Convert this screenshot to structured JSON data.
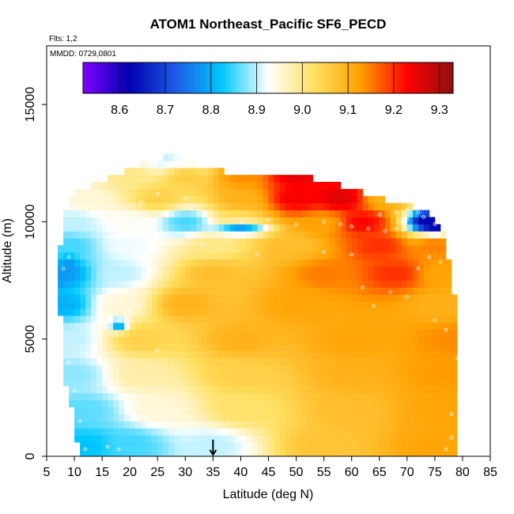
{
  "chart_data": {
    "type": "heatmap",
    "title": "ATOM1 Northeast_Pacific SF6_PECD",
    "subtitle_flights": "Flts: 1,2",
    "subtitle_dates": "MMDD: 0729,0801",
    "xlabel": "Latitude (deg N)",
    "ylabel": "Altitude (m)",
    "xlim": [
      5,
      85
    ],
    "ylim": [
      0,
      17500
    ],
    "x_ticks": [
      5,
      10,
      15,
      20,
      25,
      30,
      35,
      40,
      45,
      50,
      55,
      60,
      65,
      70,
      75,
      80,
      85
    ],
    "y_ticks": [
      0,
      5000,
      10000,
      15000
    ],
    "colorbar": {
      "range": [
        8.52,
        9.33
      ],
      "ticks": [
        8.6,
        8.7,
        8.8,
        8.9,
        9.0,
        9.1,
        9.2,
        9.3
      ],
      "colors": [
        "#8000ff",
        "#0000b0",
        "#1e5ae6",
        "#00c8ff",
        "#ffffff",
        "#ffe060",
        "#ffa000",
        "#ff0000",
        "#901010"
      ]
    },
    "marker": {
      "latitude": 35,
      "altitude": 0,
      "symbol": "arrow-down"
    },
    "grid_lat_step": 1,
    "grid_alt_step": 300,
    "extent_lat_min": [
      [
        0,
        11
      ],
      [
        1500,
        10
      ],
      [
        3000,
        8.5
      ],
      [
        4500,
        8
      ],
      [
        6000,
        7.5
      ],
      [
        7500,
        7
      ],
      [
        9000,
        7.5
      ],
      [
        10500,
        8.5
      ],
      [
        11500,
        10
      ]
    ],
    "extent_lat_max": [
      [
        0,
        78.5
      ],
      [
        1500,
        78.5
      ],
      [
        3000,
        78.5
      ],
      [
        4500,
        78.5
      ],
      [
        5500,
        79.5
      ],
      [
        6500,
        79
      ],
      [
        7500,
        78
      ],
      [
        8500,
        77.5
      ],
      [
        9500,
        76.5
      ],
      [
        10300,
        75
      ],
      [
        11000,
        70
      ],
      [
        11800,
        62
      ],
      [
        12600,
        30
      ]
    ],
    "top_profile": [
      [
        9,
        11200
      ],
      [
        15,
        11700
      ],
      [
        20,
        12200
      ],
      [
        25,
        12700
      ],
      [
        28,
        12800
      ],
      [
        33,
        12300
      ],
      [
        40,
        12000
      ],
      [
        50,
        11900
      ],
      [
        55,
        11800
      ],
      [
        60,
        11400
      ],
      [
        65,
        11000
      ],
      [
        70,
        10700
      ],
      [
        75,
        10300
      ],
      [
        78,
        9800
      ]
    ],
    "value_anchors": [
      [
        12,
        500,
        8.82
      ],
      [
        20,
        500,
        8.85
      ],
      [
        35,
        500,
        8.9
      ],
      [
        55,
        500,
        9.07
      ],
      [
        75,
        500,
        9.12
      ],
      [
        12,
        2000,
        8.86
      ],
      [
        25,
        2000,
        8.95
      ],
      [
        40,
        2000,
        9.02
      ],
      [
        60,
        2000,
        9.08
      ],
      [
        76,
        2000,
        9.12
      ],
      [
        10,
        3500,
        8.88
      ],
      [
        22,
        3500,
        8.98
      ],
      [
        40,
        3500,
        9.05
      ],
      [
        60,
        3500,
        9.1
      ],
      [
        76,
        3500,
        9.13
      ],
      [
        9,
        5000,
        8.9
      ],
      [
        22,
        5000,
        9.05
      ],
      [
        40,
        5000,
        9.1
      ],
      [
        60,
        5000,
        9.12
      ],
      [
        78,
        5000,
        9.14
      ],
      [
        8,
        6500,
        8.8
      ],
      [
        18,
        6500,
        8.95
      ],
      [
        30,
        6500,
        9.1
      ],
      [
        50,
        6500,
        9.12
      ],
      [
        76,
        6500,
        9.1
      ],
      [
        8,
        7800,
        8.78
      ],
      [
        18,
        7800,
        8.9
      ],
      [
        35,
        7800,
        9.08
      ],
      [
        55,
        7800,
        9.15
      ],
      [
        68,
        7800,
        9.2
      ],
      [
        76,
        7800,
        9.12
      ],
      [
        9,
        9000,
        8.85
      ],
      [
        20,
        9000,
        8.92
      ],
      [
        35,
        9000,
        9.0
      ],
      [
        50,
        9000,
        9.08
      ],
      [
        65,
        9000,
        9.2
      ],
      [
        75,
        9000,
        9.15
      ],
      [
        10,
        10000,
        8.9
      ],
      [
        20,
        10000,
        8.93
      ],
      [
        30,
        10000,
        8.85
      ],
      [
        40,
        10000,
        9.02
      ],
      [
        55,
        10000,
        9.12
      ],
      [
        62,
        10000,
        9.23
      ],
      [
        75,
        10000,
        8.65
      ],
      [
        12,
        11000,
        8.95
      ],
      [
        25,
        11000,
        9.05
      ],
      [
        40,
        11000,
        9.1
      ],
      [
        50,
        11000,
        9.24
      ],
      [
        58,
        11000,
        9.26
      ],
      [
        66,
        11000,
        9.1
      ],
      [
        20,
        12000,
        9.0
      ],
      [
        30,
        12000,
        9.06
      ],
      [
        40,
        12000,
        9.14
      ],
      [
        50,
        12000,
        9.25
      ],
      [
        26,
        12700,
        8.9
      ],
      [
        30,
        12600,
        8.92
      ]
    ],
    "value_spots": [
      [
        40,
        9700,
        8.78,
        5
      ],
      [
        18,
        5600,
        8.78,
        1.5
      ],
      [
        73,
        10000,
        8.62,
        2
      ],
      [
        75,
        9800,
        8.62,
        1.5
      ],
      [
        9,
        8300,
        8.78,
        1.5
      ],
      [
        7,
        7500,
        8.78,
        1.5
      ]
    ],
    "sample_points": [
      [
        10,
        300
      ],
      [
        12,
        300
      ],
      [
        16,
        400
      ],
      [
        18,
        300
      ],
      [
        11,
        1500
      ],
      [
        10,
        2800
      ],
      [
        9,
        4000
      ],
      [
        8,
        8000
      ],
      [
        9,
        8500
      ],
      [
        18,
        5800
      ],
      [
        20,
        6200
      ],
      [
        25,
        4500
      ],
      [
        62,
        7200
      ],
      [
        64,
        6400
      ],
      [
        67,
        7000
      ],
      [
        70,
        6800
      ],
      [
        75,
        5800
      ],
      [
        77,
        5400
      ],
      [
        72,
        8000
      ],
      [
        74,
        8500
      ],
      [
        76,
        8300
      ],
      [
        40,
        10000
      ],
      [
        45,
        10100
      ],
      [
        50,
        9900
      ],
      [
        55,
        10000
      ],
      [
        58,
        9900
      ],
      [
        60,
        9800
      ],
      [
        63,
        9700
      ],
      [
        66,
        9600
      ],
      [
        68,
        9700
      ],
      [
        70,
        10100
      ],
      [
        73,
        10200
      ],
      [
        75,
        9900
      ],
      [
        77,
        9800
      ],
      [
        79,
        4200
      ],
      [
        78,
        1800
      ],
      [
        78,
        800
      ],
      [
        77,
        300
      ],
      [
        65,
        10300
      ],
      [
        68,
        10400
      ],
      [
        70,
        10500
      ],
      [
        72,
        10400
      ],
      [
        30,
        11000
      ],
      [
        25,
        11200
      ],
      [
        22,
        10800
      ],
      [
        33,
        9000
      ],
      [
        43,
        8600
      ],
      [
        55,
        8700
      ],
      [
        60,
        8600
      ]
    ]
  }
}
